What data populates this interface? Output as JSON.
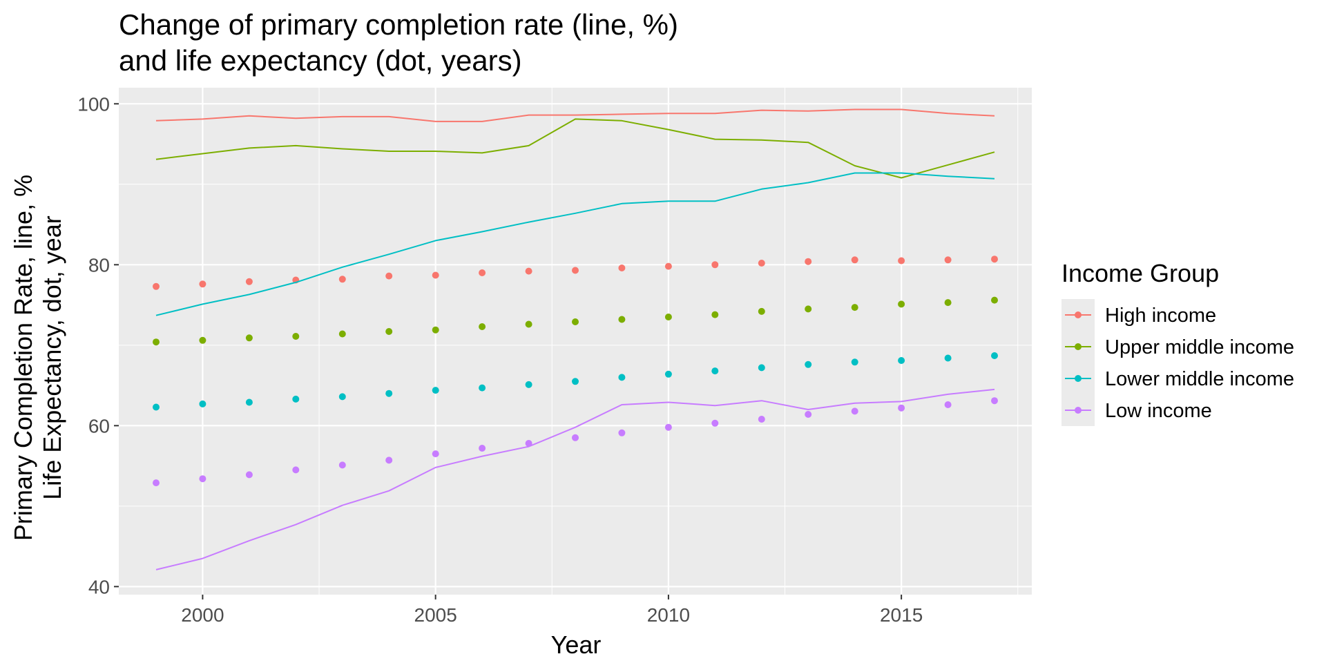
{
  "chart_data": {
    "type": "line",
    "title_lines": [
      "Change of primary completion rate (line, %)",
      "and life expectancy (dot, years)"
    ],
    "xlabel": "Year",
    "ylabel_lines": [
      "Primary Completion Rate, line, %",
      "Life Expectancy, dot, year"
    ],
    "xlim": [
      1998.2,
      2017.8
    ],
    "ylim": [
      39,
      102
    ],
    "x_ticks": [
      2000,
      2005,
      2010,
      2015
    ],
    "y_ticks": [
      40,
      60,
      80,
      100
    ],
    "x_minor_ticks": [
      2002.5,
      2007.5,
      2012.5,
      2017.5
    ],
    "y_minor_ticks": [
      50,
      70,
      90
    ],
    "grid": true,
    "legend": {
      "title": "Income Group",
      "position": "right"
    },
    "x": [
      1999,
      2000,
      2001,
      2002,
      2003,
      2004,
      2005,
      2006,
      2007,
      2008,
      2009,
      2010,
      2011,
      2012,
      2013,
      2014,
      2015,
      2016,
      2017
    ],
    "series": [
      {
        "name": "High income",
        "color": "#F8766D",
        "line_values": [
          97.9,
          98.1,
          98.5,
          98.2,
          98.4,
          98.4,
          97.8,
          97.8,
          98.6,
          98.6,
          98.7,
          98.8,
          98.8,
          99.2,
          99.1,
          99.3,
          99.3,
          98.8,
          98.5
        ],
        "dot_values": [
          77.3,
          77.6,
          77.9,
          78.1,
          78.2,
          78.6,
          78.7,
          79.0,
          79.2,
          79.3,
          79.6,
          79.8,
          80.0,
          80.2,
          80.4,
          80.6,
          80.5,
          80.6,
          80.7
        ]
      },
      {
        "name": "Upper middle income",
        "color": "#7CAE00",
        "line_values": [
          93.1,
          93.8,
          94.5,
          94.8,
          94.4,
          94.1,
          94.1,
          93.9,
          94.8,
          98.1,
          97.9,
          96.8,
          95.6,
          95.5,
          95.2,
          92.3,
          90.8,
          92.4,
          94.0
        ],
        "dot_values": [
          70.4,
          70.6,
          70.9,
          71.1,
          71.4,
          71.7,
          71.9,
          72.3,
          72.6,
          72.9,
          73.2,
          73.5,
          73.8,
          74.2,
          74.5,
          74.7,
          75.1,
          75.3,
          75.6
        ]
      },
      {
        "name": "Lower middle income",
        "color": "#00BFC4",
        "line_values": [
          73.7,
          75.1,
          76.3,
          77.8,
          79.7,
          81.3,
          83.0,
          84.1,
          85.3,
          86.4,
          87.6,
          87.9,
          87.9,
          89.4,
          90.2,
          91.4,
          91.4,
          91.0,
          90.7
        ],
        "dot_values": [
          62.3,
          62.7,
          62.9,
          63.3,
          63.6,
          64.0,
          64.4,
          64.7,
          65.1,
          65.5,
          66.0,
          66.4,
          66.8,
          67.2,
          67.6,
          67.9,
          68.1,
          68.4,
          68.7
        ]
      },
      {
        "name": "Low income",
        "color": "#C77CFF",
        "line_values": [
          42.1,
          43.5,
          45.7,
          47.7,
          50.1,
          51.9,
          54.8,
          56.2,
          57.4,
          59.8,
          62.6,
          62.9,
          62.5,
          63.1,
          62.0,
          62.8,
          63.0,
          63.9,
          64.5
        ],
        "dot_values": [
          52.9,
          53.4,
          53.9,
          54.5,
          55.1,
          55.7,
          56.5,
          57.2,
          57.8,
          58.5,
          59.1,
          59.8,
          60.3,
          60.8,
          61.4,
          61.8,
          62.2,
          62.6,
          63.1
        ]
      }
    ]
  }
}
